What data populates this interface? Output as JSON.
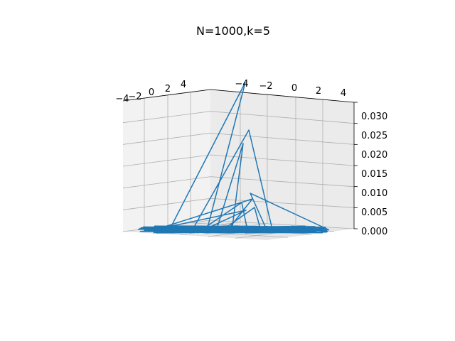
{
  "chart_data": {
    "type": "line3d",
    "title": "N=1000,k=5",
    "x_ticks": [
      "−4",
      "−2",
      "0",
      "2",
      "4"
    ],
    "y_ticks": [
      "−4",
      "−2",
      "0",
      "2",
      "4"
    ],
    "z_ticks": [
      "0.000",
      "0.005",
      "0.010",
      "0.015",
      "0.020",
      "0.025",
      "0.030"
    ],
    "zlim": [
      0,
      0.03
    ],
    "grid": true,
    "line_color": "#1f77b4",
    "pane_color": "#f2f2f2",
    "grid_color": "#b0b0b0"
  }
}
